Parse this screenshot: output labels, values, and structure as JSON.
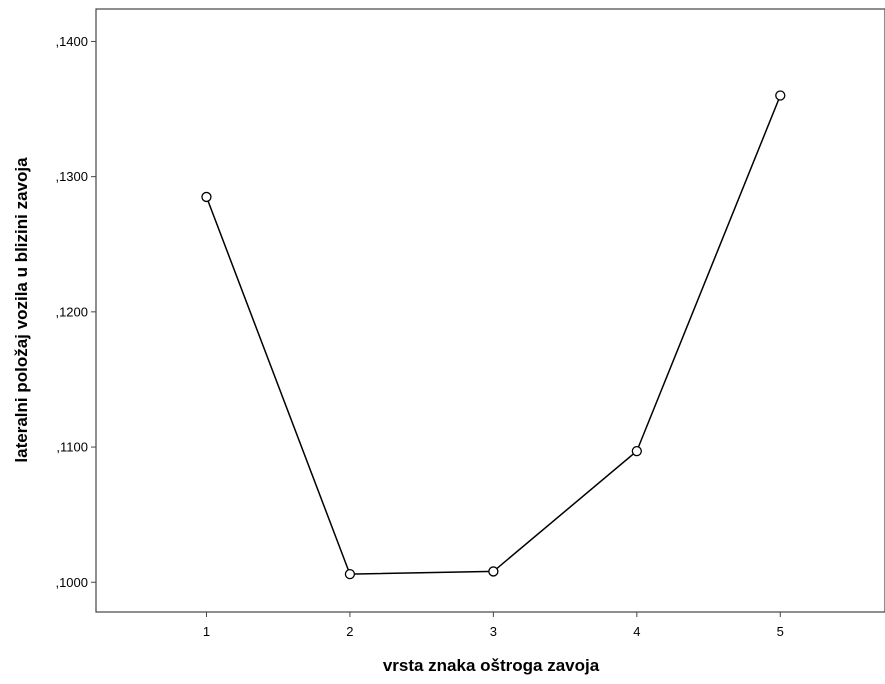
{
  "chart_data": {
    "type": "line",
    "title": "",
    "xlabel": "vrsta znaka oštroga zavoja",
    "ylabel": "lateralni položaj vozila u blizini zavoja",
    "x": [
      1,
      2,
      3,
      4,
      5
    ],
    "x_tick_labels": [
      "1",
      "2",
      "3",
      "4",
      "5"
    ],
    "xlim": [
      0.23,
      5.73
    ],
    "series": [
      {
        "values": [
          0.1285,
          0.1006,
          0.1008,
          0.1097,
          0.136
        ]
      }
    ],
    "y_ticks": [
      0.1,
      0.11,
      0.12,
      0.13,
      0.14
    ],
    "y_tick_labels": [
      ",1000",
      ",1100",
      ",1200",
      ",1300",
      ",1400"
    ],
    "ylim": [
      0.0978,
      0.1424
    ],
    "grid": false,
    "marker": "circle-open",
    "line_color": "#000000"
  }
}
